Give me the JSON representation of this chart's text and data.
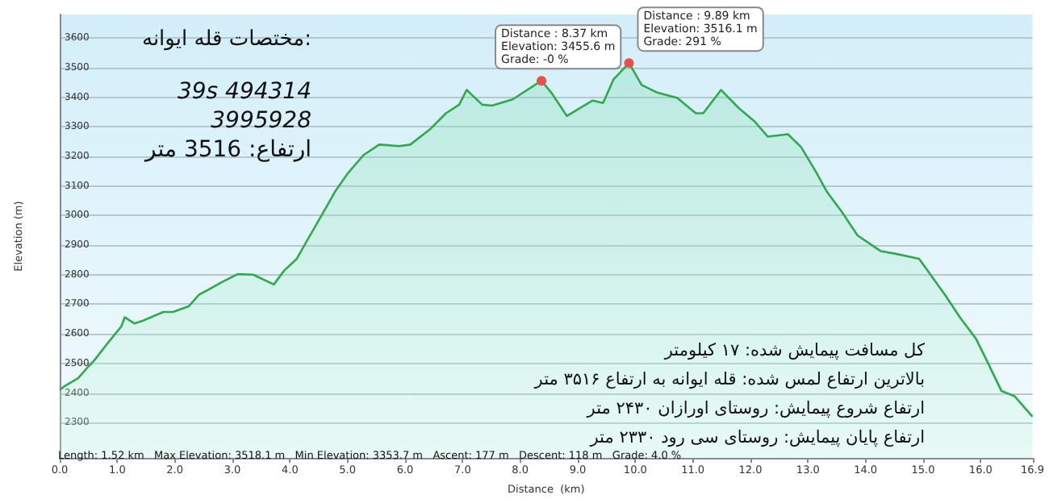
{
  "chart_data": {
    "type": "area",
    "xlabel": "Distance  (km)",
    "ylabel": "Elevation (m)",
    "x": [
      0,
      0.1,
      0.32,
      0.5,
      0.6,
      0.86,
      1.07,
      1.13,
      1.3,
      1.44,
      1.8,
      1.97,
      2.24,
      2.42,
      2.82,
      3.09,
      3.36,
      3.72,
      3.9,
      4.12,
      4.3,
      4.61,
      4.79,
      5.01,
      5.28,
      5.55,
      5.9,
      6.09,
      6.44,
      6.71,
      6.94,
      7.07,
      7.34,
      7.51,
      7.87,
      8.37,
      8.54,
      8.81,
      9.26,
      9.44,
      9.62,
      9.89,
      10.11,
      10.38,
      10.73,
      11.05,
      11.18,
      11.49,
      11.8,
      12.07,
      12.3,
      12.65,
      12.88,
      13.15,
      13.32,
      13.59,
      13.86,
      14.26,
      14.49,
      14.93,
      15.38,
      15.65,
      15.92,
      16.1,
      16.36,
      16.59,
      16.9
    ],
    "series": [
      {
        "color": "#2eaa4a",
        "values": [
          2410,
          2425,
          2450,
          2490,
          2510,
          2575,
          2625,
          2656,
          2635,
          2644,
          2674,
          2674,
          2693,
          2732,
          2775,
          2802,
          2800,
          2767,
          2814,
          2854,
          2916,
          3021,
          3083,
          3144,
          3205,
          3240,
          3235,
          3240,
          3293,
          3346,
          3375,
          3425,
          3375,
          3372,
          3393,
          3456,
          3416,
          3337,
          3389,
          3381,
          3460,
          3516,
          3442,
          3416,
          3398,
          3346,
          3346,
          3425,
          3363,
          3319,
          3267,
          3275,
          3232,
          3144,
          3083,
          3012,
          2933,
          2880,
          2872,
          2854,
          2732,
          2653,
          2583,
          2512,
          2407,
          2389,
          2320
        ]
      }
    ],
    "xlim": [
      0,
      16.9
    ],
    "xticks": [
      {
        "value": 0,
        "label": "0.0"
      },
      {
        "value": 1,
        "label": "1.0"
      },
      {
        "value": 2,
        "label": "2.0"
      },
      {
        "value": 3,
        "label": "3.0"
      },
      {
        "value": 4,
        "label": "4.0"
      },
      {
        "value": 5,
        "label": "5.0"
      },
      {
        "value": 6,
        "label": "6.0"
      },
      {
        "value": 7,
        "label": "7.0"
      },
      {
        "value": 8,
        "label": "8.0"
      },
      {
        "value": 9,
        "label": "9.0"
      },
      {
        "value": 10,
        "label": "10.0"
      },
      {
        "value": 11,
        "label": "11.0"
      },
      {
        "value": 12,
        "label": "12.0"
      },
      {
        "value": 13,
        "label": "13.0"
      },
      {
        "value": 14,
        "label": "14.0"
      },
      {
        "value": 15,
        "label": "15.0"
      },
      {
        "value": 16,
        "label": "16.0"
      },
      {
        "value": 16.9,
        "label": "16.9"
      }
    ],
    "ylim": [
      2180,
      3680
    ],
    "yticks": [
      2300,
      2400,
      2500,
      2600,
      2700,
      2800,
      2900,
      3000,
      3100,
      3200,
      3300,
      3400,
      3500,
      3600
    ],
    "grid": "y",
    "marker": "none",
    "line_style": "solid",
    "annotations": [
      {
        "text": "Distance : 8.37 km\nElevation: 3455.6 m\nGrade: -0 %",
        "x": 8.37,
        "y": 3455.6
      },
      {
        "text": "Distance : 9.89 km\nElevation: 3516.1 m\nGrade: 291 %",
        "x": 9.89,
        "y": 3516
      },
      "مختصات قله ایوانه:",
      "39s 494314",
      "3995928",
      "ارتفاع: 3516 متر",
      "کل مسافت پیمایش شده: ۱۷ کیلومتر",
      "بالاترین ارتفاع لمس شده: قله ایوانه به ارتفاع ۳۵۱۶ متر",
      "ارتفاع شروع پیمایش: روستای اورازان ۲۴۳۰ متر",
      "ارتفاع پایان پیمایش: روستای سی رود ۲۳۳۰ متر",
      "Length: 1.52 km   Max Elevation: 3518.1 m   Min Elevation: 3353.7 m   Ascent: 177 m   Descent: 118 m   Grade: 4.0 %"
    ]
  }
}
